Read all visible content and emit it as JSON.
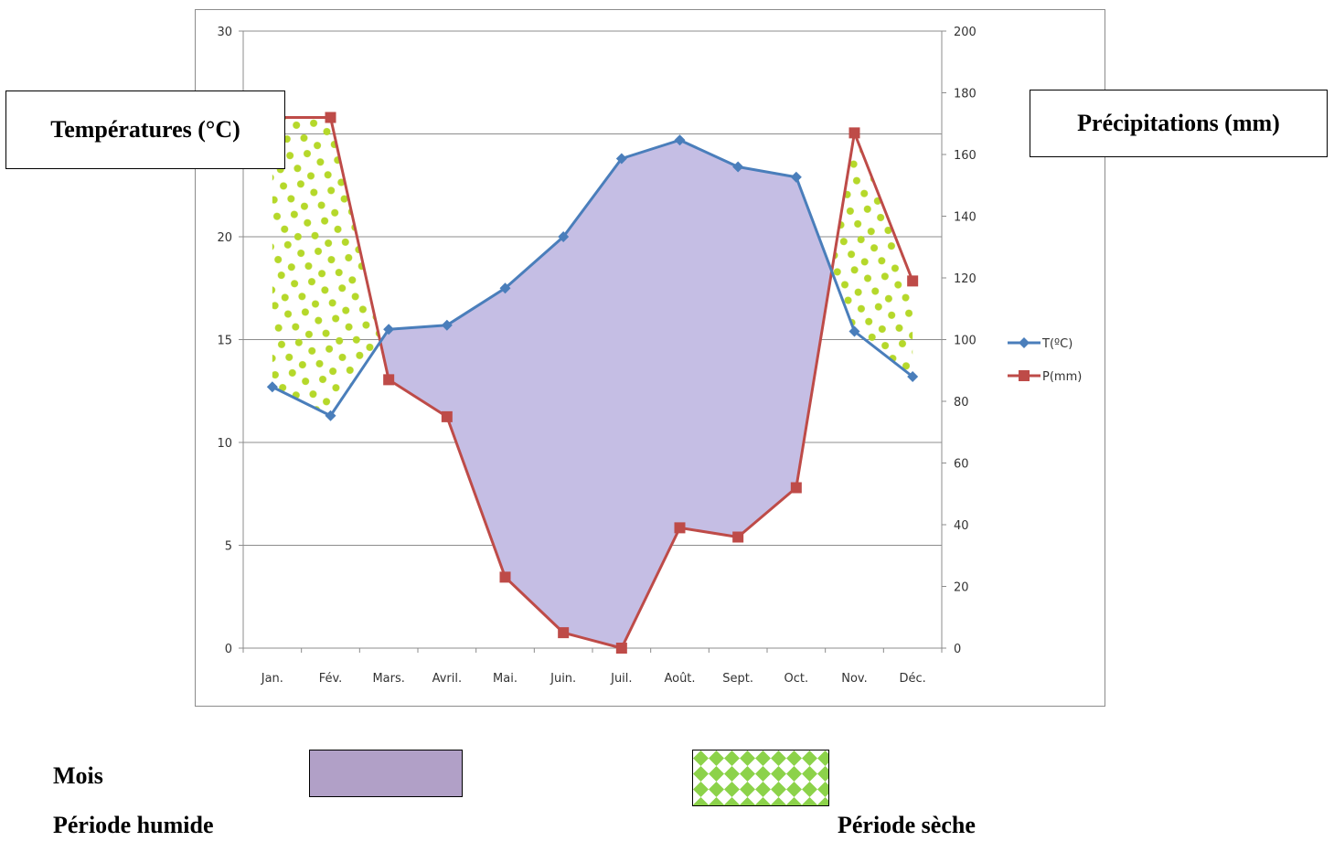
{
  "chart_data": {
    "type": "line",
    "title": "",
    "xlabel": "Mois",
    "ylabel_left": "Températures (°C)",
    "ylabel_right": "Précipitations (mm)",
    "categories": [
      "Jan.",
      "Fév.",
      "Mars.",
      "Avril.",
      "Mai.",
      "Juin.",
      "Juil.",
      "Août.",
      "Sept.",
      "Oct.",
      "Nov.",
      "Déc."
    ],
    "series": [
      {
        "name": "T(°C)",
        "axis": "left",
        "color": "#4a7ebb",
        "marker": "diamond",
        "values": [
          12.7,
          11.3,
          15.5,
          15.7,
          17.5,
          20.0,
          23.8,
          24.7,
          23.4,
          22.9,
          15.4,
          13.2
        ]
      },
      {
        "name": "P(mm)",
        "axis": "right",
        "color": "#be4b48",
        "marker": "square",
        "values": [
          172,
          172,
          87,
          75,
          23,
          5,
          0,
          39,
          36,
          52,
          167,
          119
        ]
      }
    ],
    "ylim_left": [
      0,
      30
    ],
    "yticks_left": [
      0,
      5,
      10,
      15,
      20,
      25,
      30
    ],
    "ytick_labels_left": [
      "0",
      "5",
      "10",
      "15",
      "20",
      "",
      "30"
    ],
    "ylim_right": [
      0,
      200
    ],
    "yticks_right": [
      0,
      20,
      40,
      60,
      80,
      100,
      120,
      140,
      160,
      180,
      200
    ],
    "grid": true,
    "legend": "right",
    "legend_labels": [
      "T(ºC)",
      "P(mm)"
    ],
    "shading": {
      "humid_color": "#c5bee4",
      "dry_color": "#b5d82a"
    }
  },
  "legend_boxes": {
    "wet_label": "Période humide",
    "wet_color": "#b1a0c7",
    "dry_label": "Période sèche",
    "dry_color": "#8cd24a"
  }
}
